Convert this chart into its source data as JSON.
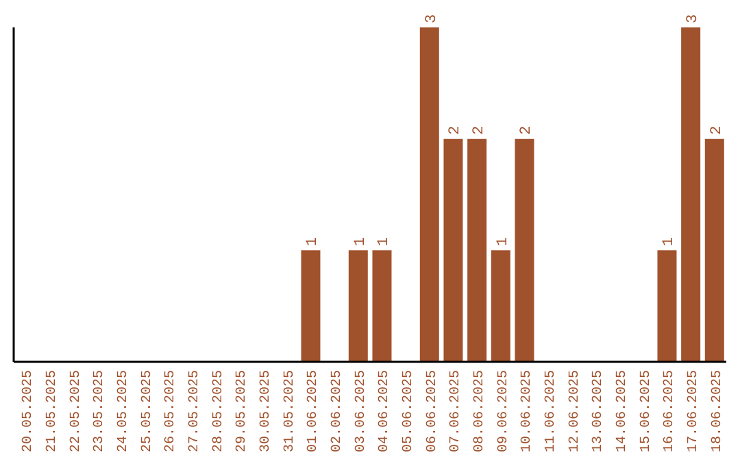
{
  "chart_data": {
    "type": "bar",
    "categories": [
      "20.05.2025",
      "21.05.2025",
      "22.05.2025",
      "23.05.2025",
      "24.05.2025",
      "25.05.2025",
      "26.05.2025",
      "27.05.2025",
      "28.05.2025",
      "29.05.2025",
      "30.05.2025",
      "31.05.2025",
      "01.06.2025",
      "02.06.2025",
      "03.06.2025",
      "04.06.2025",
      "05.06.2025",
      "06.06.2025",
      "07.06.2025",
      "08.06.2025",
      "09.06.2025",
      "10.06.2025",
      "11.06.2025",
      "12.06.2025",
      "13.06.2025",
      "14.06.2025",
      "15.06.2025",
      "16.06.2025",
      "17.06.2025",
      "18.06.2025"
    ],
    "values": [
      null,
      null,
      null,
      null,
      null,
      null,
      null,
      null,
      null,
      null,
      null,
      null,
      1,
      null,
      1,
      1,
      null,
      3,
      2,
      2,
      1,
      2,
      null,
      null,
      null,
      null,
      null,
      1,
      3,
      2
    ],
    "data_labels": true,
    "color": "#a0522d",
    "grid": false,
    "legend": false
  }
}
